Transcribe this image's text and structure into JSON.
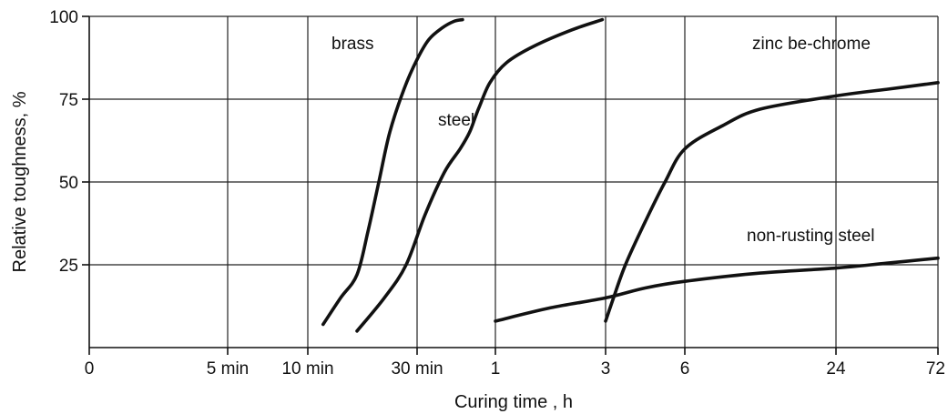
{
  "chart_data": {
    "type": "line",
    "title": "",
    "xlabel": "Curing time , h",
    "ylabel": "Relative toughness, %",
    "x_tick_labels": [
      "0",
      "5 min",
      "10 min",
      "30 min",
      "1",
      "3",
      "6",
      "24",
      "72"
    ],
    "y_tick_labels": [
      "25",
      "50",
      "75",
      "100"
    ],
    "y_ticks": [
      25,
      50,
      75,
      100
    ],
    "ylim": [
      0,
      100
    ],
    "grid": true,
    "series": [
      {
        "name": "brass",
        "x_tick_index": [
          2.14,
          2.3,
          2.45,
          2.55,
          2.65,
          2.75,
          2.88,
          3.0,
          3.15,
          3.32,
          3.47,
          3.58
        ],
        "values": [
          7,
          15,
          22,
          35,
          50,
          65,
          78,
          87,
          93,
          96.5,
          98.5,
          99
        ]
      },
      {
        "name": "steel",
        "x_tick_index": [
          2.45,
          2.7,
          2.9,
          3.1,
          3.35,
          3.55,
          3.67,
          3.75,
          3.8,
          3.93,
          4.1,
          4.35,
          4.7,
          4.97
        ],
        "values": [
          5,
          15,
          25,
          40,
          53,
          60,
          65,
          70,
          73,
          80,
          86,
          91,
          96,
          99
        ]
      },
      {
        "name": "zinc be-chrome",
        "x_tick_index": [
          5.0,
          5.1,
          5.25,
          5.5,
          5.75,
          6.0,
          6.25,
          6.5,
          7.0,
          7.5,
          8.0
        ],
        "values": [
          8,
          15,
          25,
          38,
          50,
          60,
          67,
          72,
          76,
          78,
          80
        ]
      },
      {
        "name": "non-rusting steel",
        "x_tick_index": [
          4.0,
          4.5,
          5.0,
          5.5,
          6.0,
          6.5,
          7.0,
          7.5,
          8.0
        ],
        "values": [
          8,
          12,
          15,
          18,
          20,
          22.5,
          24,
          25.5,
          27
        ]
      }
    ],
    "curve_labels": {
      "brass": "brass",
      "steel": "steel",
      "zinc": "zinc be-chrome",
      "nonrust": "non-rusting steel"
    }
  }
}
